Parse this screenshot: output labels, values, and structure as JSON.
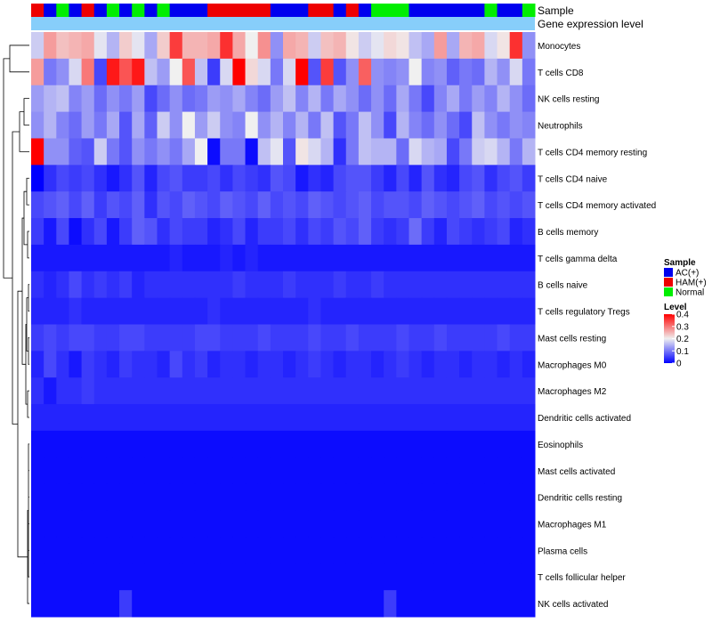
{
  "chart_data": {
    "type": "heatmap",
    "title": "",
    "annotation_labels": {
      "sample": "Sample",
      "expression": "Gene expression level"
    },
    "rows": [
      "Monocytes",
      "T cells CD8",
      "NK cells resting",
      "Neutrophils",
      "T cells CD4 memory resting",
      "T cells CD4 naive",
      "T cells CD4 memory activated",
      "B cells memory",
      "T cells gamma delta",
      "B cells naive",
      "T cells regulatory  Tregs",
      "Mast cells resting",
      "Macrophages M0",
      "Macrophages M2",
      "Dendritic cells activated",
      "Eosinophils",
      "Mast cells activated",
      "Dendritic cells resting",
      "Macrophages M1",
      "Plasma cells",
      "T cells follicular helper",
      "NK cells activated"
    ],
    "column_groups": [
      "HAM(+)",
      "AC(+)",
      "Normal",
      "AC(+)",
      "HAM(+)",
      "AC(+)",
      "Normal",
      "AC(+)",
      "Normal",
      "AC(+)",
      "Normal",
      "AC(+)",
      "AC(+)",
      "AC(+)",
      "HAM(+)",
      "HAM(+)",
      "HAM(+)",
      "HAM(+)",
      "HAM(+)",
      "AC(+)",
      "AC(+)",
      "AC(+)",
      "HAM(+)",
      "HAM(+)",
      "AC(+)",
      "HAM(+)",
      "AC(+)",
      "Normal",
      "Normal",
      "Normal",
      "AC(+)",
      "AC(+)",
      "AC(+)",
      "AC(+)",
      "AC(+)",
      "AC(+)",
      "Normal",
      "AC(+)",
      "AC(+)",
      "Normal"
    ],
    "values": [
      [
        0.17,
        0.27,
        0.24,
        0.25,
        0.26,
        0.19,
        0.15,
        0.23,
        0.19,
        0.14,
        0.23,
        0.35,
        0.25,
        0.25,
        0.26,
        0.36,
        0.26,
        0.2,
        0.28,
        0.12,
        0.26,
        0.25,
        0.17,
        0.24,
        0.25,
        0.21,
        0.17,
        0.19,
        0.22,
        0.21,
        0.16,
        0.14,
        0.27,
        0.14,
        0.25,
        0.26,
        0.18,
        0.21,
        0.36,
        0.12
      ],
      [
        0.27,
        0.1,
        0.12,
        0.18,
        0.3,
        0.06,
        0.38,
        0.33,
        0.38,
        0.16,
        0.13,
        0.2,
        0.33,
        0.16,
        0.05,
        0.18,
        0.4,
        0.22,
        0.18,
        0.1,
        0.18,
        0.4,
        0.07,
        0.35,
        0.07,
        0.12,
        0.32,
        0.12,
        0.11,
        0.12,
        0.2,
        0.11,
        0.12,
        0.08,
        0.1,
        0.09,
        0.15,
        0.12,
        0.18,
        0.1
      ],
      [
        0.13,
        0.15,
        0.16,
        0.11,
        0.13,
        0.09,
        0.12,
        0.1,
        0.13,
        0.06,
        0.09,
        0.12,
        0.09,
        0.1,
        0.13,
        0.12,
        0.14,
        0.11,
        0.09,
        0.13,
        0.16,
        0.11,
        0.15,
        0.1,
        0.14,
        0.12,
        0.09,
        0.12,
        0.09,
        0.14,
        0.1,
        0.06,
        0.11,
        0.14,
        0.1,
        0.13,
        0.11,
        0.15,
        0.12,
        0.09
      ],
      [
        0.12,
        0.15,
        0.11,
        0.09,
        0.13,
        0.1,
        0.14,
        0.07,
        0.14,
        0.08,
        0.17,
        0.12,
        0.2,
        0.13,
        0.17,
        0.12,
        0.11,
        0.2,
        0.12,
        0.15,
        0.11,
        0.15,
        0.1,
        0.16,
        0.07,
        0.1,
        0.16,
        0.12,
        0.06,
        0.15,
        0.11,
        0.09,
        0.12,
        0.09,
        0.06,
        0.16,
        0.12,
        0.1,
        0.12,
        0.11
      ],
      [
        0.4,
        0.12,
        0.12,
        0.08,
        0.07,
        0.17,
        0.1,
        0.07,
        0.12,
        0.1,
        0.12,
        0.1,
        0.14,
        0.2,
        0.01,
        0.1,
        0.1,
        0.01,
        0.16,
        0.19,
        0.07,
        0.21,
        0.18,
        0.15,
        0.04,
        0.1,
        0.16,
        0.15,
        0.15,
        0.09,
        0.18,
        0.15,
        0.14,
        0.06,
        0.1,
        0.17,
        0.18,
        0.15,
        0.1,
        0.15
      ],
      [
        0.0,
        0.04,
        0.06,
        0.05,
        0.06,
        0.04,
        0.02,
        0.04,
        0.07,
        0.03,
        0.06,
        0.07,
        0.05,
        0.05,
        0.06,
        0.04,
        0.06,
        0.05,
        0.04,
        0.07,
        0.06,
        0.02,
        0.04,
        0.03,
        0.06,
        0.07,
        0.07,
        0.05,
        0.03,
        0.06,
        0.03,
        0.07,
        0.04,
        0.03,
        0.06,
        0.07,
        0.04,
        0.06,
        0.07,
        0.05
      ],
      [
        0.06,
        0.07,
        0.08,
        0.06,
        0.08,
        0.05,
        0.07,
        0.06,
        0.08,
        0.04,
        0.07,
        0.06,
        0.08,
        0.07,
        0.06,
        0.08,
        0.07,
        0.06,
        0.08,
        0.06,
        0.07,
        0.06,
        0.08,
        0.07,
        0.06,
        0.07,
        0.08,
        0.06,
        0.07,
        0.07,
        0.06,
        0.08,
        0.07,
        0.06,
        0.07,
        0.08,
        0.06,
        0.07,
        0.06,
        0.07
      ],
      [
        0.05,
        0.02,
        0.06,
        0.01,
        0.04,
        0.06,
        0.02,
        0.05,
        0.08,
        0.07,
        0.04,
        0.06,
        0.05,
        0.05,
        0.03,
        0.04,
        0.06,
        0.03,
        0.05,
        0.05,
        0.06,
        0.04,
        0.06,
        0.05,
        0.07,
        0.06,
        0.08,
        0.05,
        0.04,
        0.05,
        0.09,
        0.05,
        0.03,
        0.06,
        0.05,
        0.04,
        0.05,
        0.06,
        0.03,
        0.04
      ],
      [
        0.02,
        0.02,
        0.02,
        0.02,
        0.02,
        0.02,
        0.02,
        0.02,
        0.02,
        0.02,
        0.02,
        0.03,
        0.02,
        0.02,
        0.02,
        0.03,
        0.02,
        0.03,
        0.02,
        0.02,
        0.02,
        0.02,
        0.02,
        0.02,
        0.02,
        0.02,
        0.02,
        0.02,
        0.02,
        0.02,
        0.02,
        0.02,
        0.02,
        0.02,
        0.02,
        0.02,
        0.02,
        0.02,
        0.02,
        0.02
      ],
      [
        0.04,
        0.03,
        0.04,
        0.06,
        0.04,
        0.05,
        0.04,
        0.05,
        0.03,
        0.04,
        0.04,
        0.04,
        0.04,
        0.04,
        0.04,
        0.04,
        0.05,
        0.04,
        0.04,
        0.04,
        0.05,
        0.04,
        0.04,
        0.04,
        0.05,
        0.04,
        0.04,
        0.05,
        0.04,
        0.04,
        0.04,
        0.04,
        0.04,
        0.04,
        0.04,
        0.04,
        0.04,
        0.04,
        0.04,
        0.04
      ],
      [
        0.03,
        0.03,
        0.03,
        0.04,
        0.03,
        0.03,
        0.03,
        0.03,
        0.03,
        0.03,
        0.03,
        0.03,
        0.03,
        0.03,
        0.04,
        0.03,
        0.03,
        0.03,
        0.03,
        0.03,
        0.03,
        0.03,
        0.04,
        0.03,
        0.03,
        0.03,
        0.03,
        0.03,
        0.03,
        0.03,
        0.03,
        0.03,
        0.03,
        0.03,
        0.03,
        0.03,
        0.03,
        0.03,
        0.03,
        0.03
      ],
      [
        0.05,
        0.06,
        0.05,
        0.06,
        0.06,
        0.05,
        0.05,
        0.06,
        0.06,
        0.05,
        0.05,
        0.05,
        0.05,
        0.06,
        0.06,
        0.05,
        0.05,
        0.05,
        0.06,
        0.05,
        0.05,
        0.05,
        0.06,
        0.05,
        0.05,
        0.06,
        0.05,
        0.05,
        0.05,
        0.06,
        0.05,
        0.05,
        0.06,
        0.05,
        0.05,
        0.05,
        0.05,
        0.06,
        0.05,
        0.05
      ],
      [
        0.03,
        0.06,
        0.04,
        0.02,
        0.05,
        0.04,
        0.03,
        0.05,
        0.04,
        0.04,
        0.03,
        0.06,
        0.04,
        0.05,
        0.03,
        0.04,
        0.04,
        0.03,
        0.04,
        0.04,
        0.03,
        0.04,
        0.05,
        0.04,
        0.03,
        0.04,
        0.04,
        0.03,
        0.04,
        0.05,
        0.04,
        0.03,
        0.04,
        0.04,
        0.03,
        0.04,
        0.04,
        0.03,
        0.04,
        0.03
      ],
      [
        0.04,
        0.02,
        0.04,
        0.04,
        0.05,
        0.04,
        0.04,
        0.04,
        0.04,
        0.04,
        0.04,
        0.04,
        0.04,
        0.04,
        0.04,
        0.04,
        0.04,
        0.04,
        0.04,
        0.04,
        0.04,
        0.04,
        0.04,
        0.04,
        0.04,
        0.04,
        0.04,
        0.04,
        0.04,
        0.04,
        0.04,
        0.04,
        0.04,
        0.04,
        0.04,
        0.04,
        0.04,
        0.04,
        0.04,
        0.04
      ],
      [
        0.03,
        0.03,
        0.03,
        0.03,
        0.03,
        0.03,
        0.03,
        0.03,
        0.03,
        0.03,
        0.03,
        0.03,
        0.03,
        0.03,
        0.03,
        0.03,
        0.03,
        0.03,
        0.03,
        0.03,
        0.03,
        0.03,
        0.03,
        0.03,
        0.03,
        0.03,
        0.03,
        0.03,
        0.03,
        0.03,
        0.03,
        0.03,
        0.03,
        0.03,
        0.03,
        0.03,
        0.03,
        0.03,
        0.03,
        0.03
      ],
      [
        0.01,
        0.01,
        0.01,
        0.01,
        0.01,
        0.01,
        0.01,
        0.01,
        0.01,
        0.01,
        0.01,
        0.01,
        0.01,
        0.01,
        0.01,
        0.01,
        0.01,
        0.01,
        0.01,
        0.01,
        0.01,
        0.01,
        0.01,
        0.01,
        0.01,
        0.01,
        0.01,
        0.01,
        0.01,
        0.01,
        0.01,
        0.01,
        0.01,
        0.01,
        0.01,
        0.01,
        0.01,
        0.01,
        0.01,
        0.01
      ],
      [
        0.01,
        0.01,
        0.01,
        0.01,
        0.01,
        0.01,
        0.01,
        0.01,
        0.01,
        0.01,
        0.01,
        0.01,
        0.01,
        0.01,
        0.01,
        0.01,
        0.01,
        0.01,
        0.01,
        0.01,
        0.01,
        0.01,
        0.01,
        0.01,
        0.01,
        0.01,
        0.01,
        0.01,
        0.01,
        0.01,
        0.01,
        0.01,
        0.01,
        0.01,
        0.01,
        0.01,
        0.01,
        0.01,
        0.01,
        0.01
      ],
      [
        0.01,
        0.01,
        0.01,
        0.01,
        0.01,
        0.01,
        0.01,
        0.01,
        0.01,
        0.01,
        0.01,
        0.01,
        0.01,
        0.01,
        0.01,
        0.01,
        0.01,
        0.01,
        0.01,
        0.01,
        0.01,
        0.01,
        0.01,
        0.01,
        0.01,
        0.01,
        0.01,
        0.01,
        0.01,
        0.01,
        0.01,
        0.01,
        0.01,
        0.01,
        0.01,
        0.01,
        0.01,
        0.01,
        0.01,
        0.01
      ],
      [
        0.01,
        0.01,
        0.01,
        0.01,
        0.01,
        0.01,
        0.01,
        0.01,
        0.01,
        0.01,
        0.01,
        0.01,
        0.01,
        0.01,
        0.01,
        0.01,
        0.01,
        0.01,
        0.01,
        0.01,
        0.01,
        0.01,
        0.01,
        0.01,
        0.01,
        0.01,
        0.01,
        0.01,
        0.01,
        0.01,
        0.01,
        0.01,
        0.01,
        0.01,
        0.01,
        0.01,
        0.01,
        0.01,
        0.01,
        0.01
      ],
      [
        0.01,
        0.01,
        0.01,
        0.01,
        0.01,
        0.01,
        0.01,
        0.01,
        0.01,
        0.01,
        0.01,
        0.01,
        0.01,
        0.01,
        0.01,
        0.01,
        0.01,
        0.01,
        0.01,
        0.01,
        0.01,
        0.01,
        0.01,
        0.01,
        0.01,
        0.01,
        0.01,
        0.01,
        0.01,
        0.01,
        0.01,
        0.01,
        0.01,
        0.01,
        0.01,
        0.01,
        0.01,
        0.01,
        0.01,
        0.01
      ],
      [
        0.01,
        0.01,
        0.01,
        0.01,
        0.01,
        0.01,
        0.01,
        0.01,
        0.01,
        0.01,
        0.01,
        0.01,
        0.01,
        0.01,
        0.01,
        0.01,
        0.01,
        0.01,
        0.01,
        0.01,
        0.01,
        0.01,
        0.01,
        0.01,
        0.01,
        0.01,
        0.01,
        0.01,
        0.01,
        0.01,
        0.01,
        0.01,
        0.01,
        0.01,
        0.01,
        0.01,
        0.01,
        0.01,
        0.01,
        0.01
      ],
      [
        0.01,
        0.01,
        0.01,
        0.01,
        0.01,
        0.01,
        0.01,
        0.05,
        0.01,
        0.01,
        0.01,
        0.01,
        0.01,
        0.01,
        0.01,
        0.01,
        0.01,
        0.01,
        0.01,
        0.01,
        0.01,
        0.01,
        0.01,
        0.01,
        0.01,
        0.01,
        0.01,
        0.01,
        0.05,
        0.01,
        0.01,
        0.01,
        0.01,
        0.01,
        0.01,
        0.01,
        0.01,
        0.01,
        0.01,
        0.01
      ]
    ],
    "color_scale": {
      "min": 0,
      "mid": 0.2,
      "max": 0.4,
      "low": "#0000ff",
      "mid_color": "#f0f0f0",
      "high": "#ff0000"
    },
    "legend": {
      "sample_title": "Sample",
      "groups": [
        {
          "label": "AC(+)",
          "color": "#0000ee"
        },
        {
          "label": "HAM(+)",
          "color": "#ee0000"
        },
        {
          "label": "Normal",
          "color": "#00ee00"
        }
      ],
      "level_title": "Level",
      "level_ticks": [
        "0.4",
        "0.3",
        "0.2",
        "0.1",
        "0"
      ],
      "placement": "right"
    },
    "expression_bar_color": "#87cefa",
    "row_dendrogram": true
  }
}
